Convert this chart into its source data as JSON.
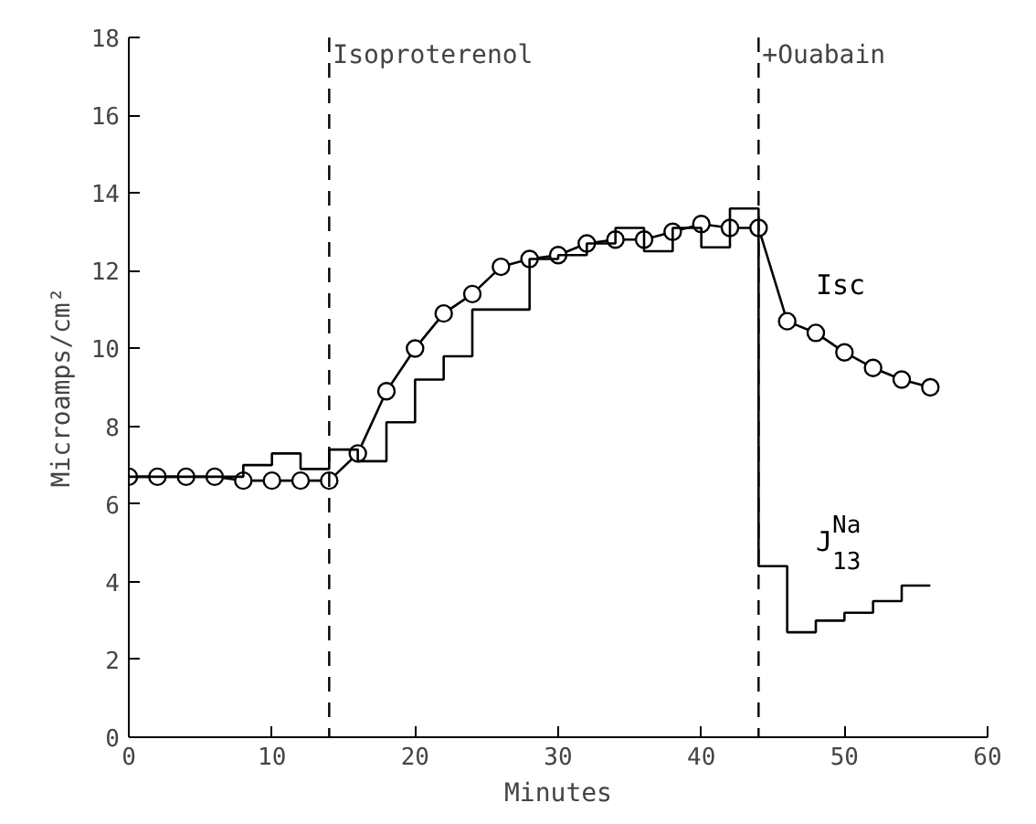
{
  "chart_data": {
    "type": "line",
    "xlabel": "Minutes",
    "ylabel": "Microamps/cm²",
    "xlim": [
      0,
      60
    ],
    "ylim": [
      0,
      18
    ],
    "xticks": [
      0,
      10,
      20,
      30,
      40,
      50,
      60
    ],
    "yticks": [
      0,
      2,
      4,
      6,
      8,
      10,
      12,
      14,
      16,
      18
    ],
    "grid": false,
    "x": [
      0,
      2,
      4,
      6,
      8,
      10,
      12,
      14,
      16,
      18,
      20,
      22,
      24,
      26,
      28,
      30,
      32,
      34,
      36,
      38,
      40,
      42,
      44,
      46,
      48,
      50,
      52,
      54,
      56
    ],
    "series": [
      {
        "name": "Isc",
        "color": "#000000",
        "marker": "circle",
        "values": [
          6.7,
          6.7,
          6.7,
          6.7,
          6.6,
          6.6,
          6.6,
          6.6,
          7.3,
          8.9,
          10.0,
          10.9,
          11.4,
          12.1,
          12.3,
          12.4,
          12.7,
          12.8,
          12.8,
          13.0,
          13.2,
          13.1,
          13.1,
          10.7,
          10.4,
          9.9,
          9.5,
          9.2,
          9.0
        ]
      },
      {
        "name": "J$^{Na}$$_{13}$",
        "type": "step",
        "color": "#000000",
        "marker": "none",
        "values": [
          6.7,
          6.7,
          6.7,
          6.7,
          7.0,
          7.3,
          6.9,
          7.4,
          7.1,
          8.1,
          9.2,
          9.8,
          11.0,
          11.0,
          12.3,
          12.4,
          12.7,
          13.1,
          12.5,
          13.1,
          12.6,
          13.6,
          4.4,
          2.7,
          3.0,
          3.2,
          3.5,
          3.9,
          3.9
        ]
      }
    ],
    "ref_lines": [
      {
        "axis": "x",
        "value": 14,
        "label": "Isoproterenol",
        "line_style": "dashed"
      },
      {
        "axis": "x",
        "value": 44,
        "label": "+Ouabain",
        "line_style": "dashed"
      }
    ]
  }
}
